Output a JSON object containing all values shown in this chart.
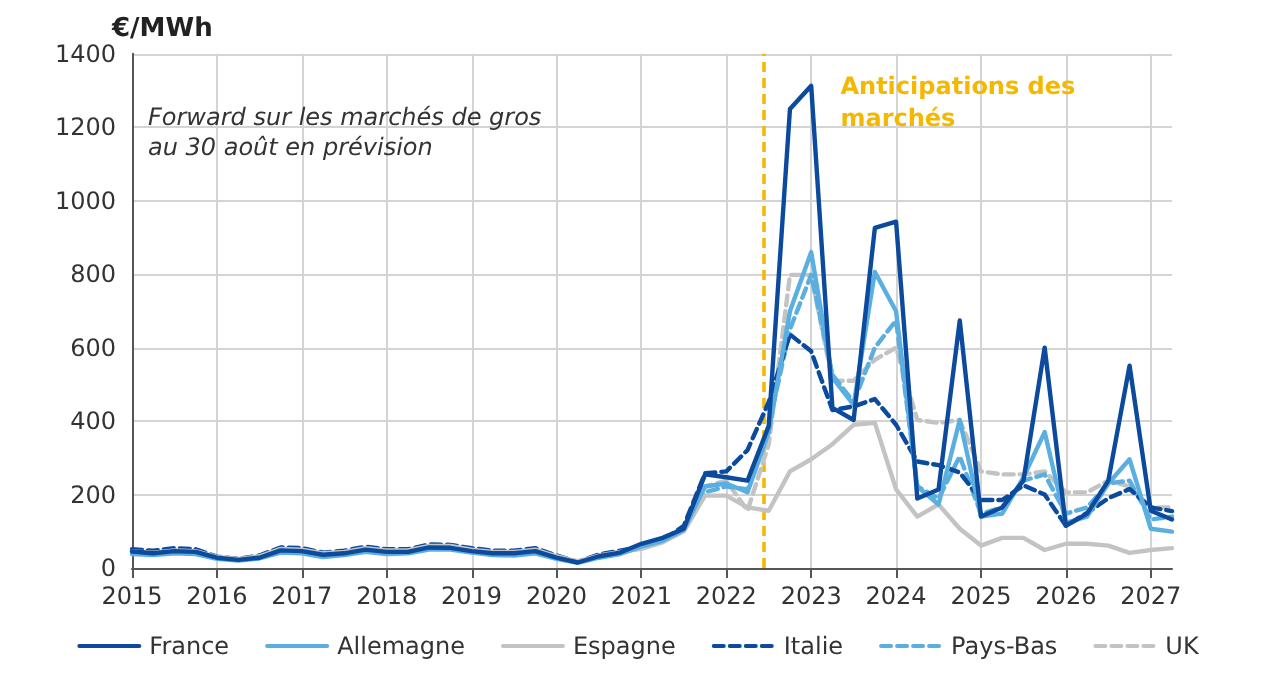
{
  "chart_data": {
    "type": "line",
    "ylabel": "€/MWh",
    "xlim": [
      2015,
      2027.25
    ],
    "xticks": [
      2015,
      2016,
      2017,
      2018,
      2019,
      2020,
      2021,
      2022,
      2023,
      2024,
      2025,
      2026,
      2027
    ],
    "ylim": [
      0,
      1400
    ],
    "yticks": [
      0,
      200,
      400,
      600,
      800,
      1000,
      1200,
      1400
    ],
    "grid": true,
    "legend": "bottom",
    "marker": "none",
    "annotations": [
      "Forward sur les marchés de gros au 30 août en prévision"
    ],
    "ref_lines": [
      {
        "axis": "x",
        "value": 2022.45,
        "label": "Anticipations des marchés",
        "color": "#f5b800",
        "line_style": "dashed"
      }
    ],
    "x": [
      2015,
      2015.25,
      2015.5,
      2015.75,
      2016,
      2016.25,
      2016.5,
      2016.75,
      2017,
      2017.25,
      2017.5,
      2017.75,
      2018,
      2018.25,
      2018.5,
      2018.75,
      2019,
      2019.25,
      2019.5,
      2019.75,
      2020,
      2020.25,
      2020.5,
      2020.75,
      2021,
      2021.25,
      2021.5,
      2021.75,
      2022,
      2022.25,
      2022.5,
      2022.75,
      2023,
      2023.25,
      2023.5,
      2023.75,
      2024,
      2024.25,
      2024.5,
      2024.75,
      2025,
      2025.25,
      2025.5,
      2025.75,
      2026,
      2026.25,
      2026.5,
      2026.75,
      2027,
      2027.25
    ],
    "series": [
      {
        "name": "France",
        "color": "#0b4a9c",
        "line_style": "solid",
        "values": [
          45,
          40,
          46,
          44,
          28,
          22,
          28,
          48,
          46,
          36,
          40,
          50,
          44,
          44,
          56,
          55,
          46,
          40,
          40,
          46,
          28,
          15,
          32,
          42,
          66,
          82,
          107,
          255,
          247,
          238,
          387,
          1250,
          1313,
          436,
          403,
          926,
          943,
          189,
          214,
          674,
          140,
          165,
          238,
          600,
          115,
          148,
          238,
          551,
          156,
          132
        ]
      },
      {
        "name": "Allemagne",
        "color": "#5aaee0",
        "line_style": "solid",
        "values": [
          38,
          35,
          40,
          38,
          25,
          20,
          26,
          42,
          40,
          30,
          35,
          44,
          38,
          40,
          50,
          50,
          42,
          35,
          34,
          40,
          25,
          14,
          28,
          38,
          58,
          74,
          104,
          222,
          230,
          206,
          370,
          699,
          860,
          518,
          444,
          806,
          699,
          222,
          173,
          403,
          140,
          148,
          247,
          370,
          123,
          140,
          230,
          296,
          107,
          99
        ]
      },
      {
        "name": "Espagne",
        "color": "#c3c3c3",
        "line_style": "solid",
        "values": [
          45,
          42,
          48,
          46,
          30,
          25,
          32,
          52,
          50,
          40,
          44,
          54,
          48,
          48,
          60,
          60,
          50,
          44,
          44,
          50,
          32,
          18,
          34,
          44,
          52,
          70,
          100,
          197,
          197,
          165,
          156,
          263,
          296,
          337,
          390,
          395,
          214,
          140,
          173,
          107,
          61,
          82,
          82,
          49,
          66,
          66,
          61,
          41,
          49,
          54
        ]
      },
      {
        "name": "Italie",
        "color": "#0b4a9c",
        "line_style": "dashed",
        "values": [
          51,
          47,
          54,
          51,
          31,
          25,
          34,
          56,
          54,
          42,
          47,
          58,
          51,
          51,
          64,
          63,
          54,
          47,
          47,
          54,
          34,
          17,
          37,
          47,
          58,
          74,
          115,
          258,
          263,
          321,
          452,
          636,
          590,
          430,
          440,
          460,
          390,
          290,
          280,
          260,
          185,
          185,
          225,
          200,
          115,
          150,
          190,
          215,
          165,
          155
        ]
      },
      {
        "name": "Pays-Bas",
        "color": "#5aaee0",
        "line_style": "dashed",
        "values": [
          42,
          38,
          44,
          42,
          27,
          22,
          28,
          46,
          45,
          35,
          40,
          48,
          42,
          44,
          54,
          54,
          45,
          38,
          38,
          44,
          28,
          15,
          30,
          40,
          58,
          74,
          108,
          206,
          222,
          214,
          387,
          650,
          798,
          526,
          452,
          600,
          674,
          222,
          189,
          304,
          148,
          165,
          238,
          255,
          148,
          165,
          230,
          238,
          132,
          140
        ]
      },
      {
        "name": "UK",
        "color": "#c3c3c3",
        "line_style": "dashed",
        "values": [
          48,
          44,
          50,
          48,
          30,
          25,
          32,
          54,
          52,
          40,
          45,
          56,
          50,
          50,
          62,
          62,
          52,
          46,
          46,
          52,
          33,
          17,
          36,
          46,
          60,
          75,
          110,
          222,
          238,
          156,
          337,
          798,
          798,
          510,
          510,
          567,
          600,
          403,
          395,
          403,
          263,
          255,
          255,
          263,
          206,
          206,
          238,
          222,
          165,
          165
        ]
      }
    ]
  }
}
